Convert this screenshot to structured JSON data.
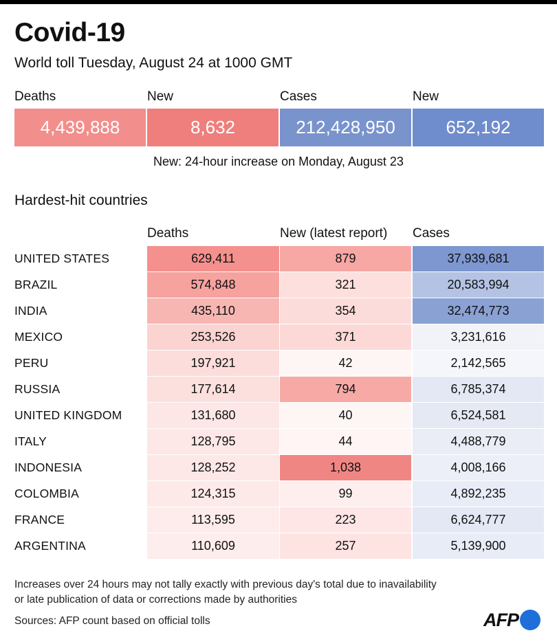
{
  "title": "Covid-19",
  "subtitle": "World toll Tuesday, August 24 at 1000 GMT",
  "summary": {
    "labels": [
      "Deaths",
      "New",
      "Cases",
      "New"
    ],
    "values": [
      "4,439,888",
      "8,632",
      "212,428,950",
      "652,192"
    ],
    "colors": [
      "#f28e8b",
      "#ee7f7c",
      "#7993cd",
      "#6f8ccc"
    ]
  },
  "summary_note": "New: 24-hour increase on Monday, August 23",
  "section_title": "Hardest-hit countries",
  "columns": [
    "Deaths",
    "New (latest report)",
    "Cases"
  ],
  "rows": [
    {
      "country": "UNITED STATES",
      "deaths": "629,411",
      "new": "879",
      "cases": "37,939,681",
      "c_deaths": "#f4908d",
      "c_new": "#f7a7a4",
      "c_cases": "#7e97d0"
    },
    {
      "country": "BRAZIL",
      "deaths": "574,848",
      "new": "321",
      "cases": "20,583,994",
      "c_deaths": "#f6a29f",
      "c_new": "#fde0de",
      "c_cases": "#b4c3e4"
    },
    {
      "country": "INDIA",
      "deaths": "435,110",
      "new": "354",
      "cases": "32,474,773",
      "c_deaths": "#f8b6b3",
      "c_new": "#fcdcda",
      "c_cases": "#8aa1d4"
    },
    {
      "country": "MEXICO",
      "deaths": "253,526",
      "new": "371",
      "cases": "3,231,616",
      "c_deaths": "#fbd3d1",
      "c_new": "#fcd9d7",
      "c_cases": "#f1f3f9"
    },
    {
      "country": "PERU",
      "deaths": "197,921",
      "new": "42",
      "cases": "2,142,565",
      "c_deaths": "#fcdddb",
      "c_new": "#fef6f5",
      "c_cases": "#f5f6fb"
    },
    {
      "country": "RUSSIA",
      "deaths": "177,614",
      "new": "794",
      "cases": "6,785,374",
      "c_deaths": "#fce0de",
      "c_new": "#f7a9a6",
      "c_cases": "#e3e8f4"
    },
    {
      "country": "UNITED KINGDOM",
      "deaths": "131,680",
      "new": "40",
      "cases": "6,524,581",
      "c_deaths": "#fde7e6",
      "c_new": "#fef6f5",
      "c_cases": "#e4e9f4"
    },
    {
      "country": "ITALY",
      "deaths": "128,795",
      "new": "44",
      "cases": "4,488,779",
      "c_deaths": "#fde8e7",
      "c_new": "#fef5f4",
      "c_cases": "#eaedf6"
    },
    {
      "country": "INDONESIA",
      "deaths": "128,252",
      "new": "1,038",
      "cases": "4,008,166",
      "c_deaths": "#fde8e7",
      "c_new": "#f08683",
      "c_cases": "#eceff7"
    },
    {
      "country": "COLOMBIA",
      "deaths": "124,315",
      "new": "99",
      "cases": "4,892,235",
      "c_deaths": "#fde9e8",
      "c_new": "#feefee",
      "c_cases": "#e8ecf6"
    },
    {
      "country": "FRANCE",
      "deaths": "113,595",
      "new": "223",
      "cases": "6,624,777",
      "c_deaths": "#fdeceb",
      "c_new": "#fde6e5",
      "c_cases": "#e3e8f4"
    },
    {
      "country": "ARGENTINA",
      "deaths": "110,609",
      "new": "257",
      "cases": "5,139,900",
      "c_deaths": "#fdedec",
      "c_new": "#fde3e2",
      "c_cases": "#e8ecf6"
    }
  ],
  "footnote_line1": "Increases over 24 hours may not tally exactly with previous day's total due to inavailability",
  "footnote_line2": "or late publication of data or corrections made by authorities",
  "sources": "Sources: AFP count based on official tolls",
  "logo_text": "AFP"
}
